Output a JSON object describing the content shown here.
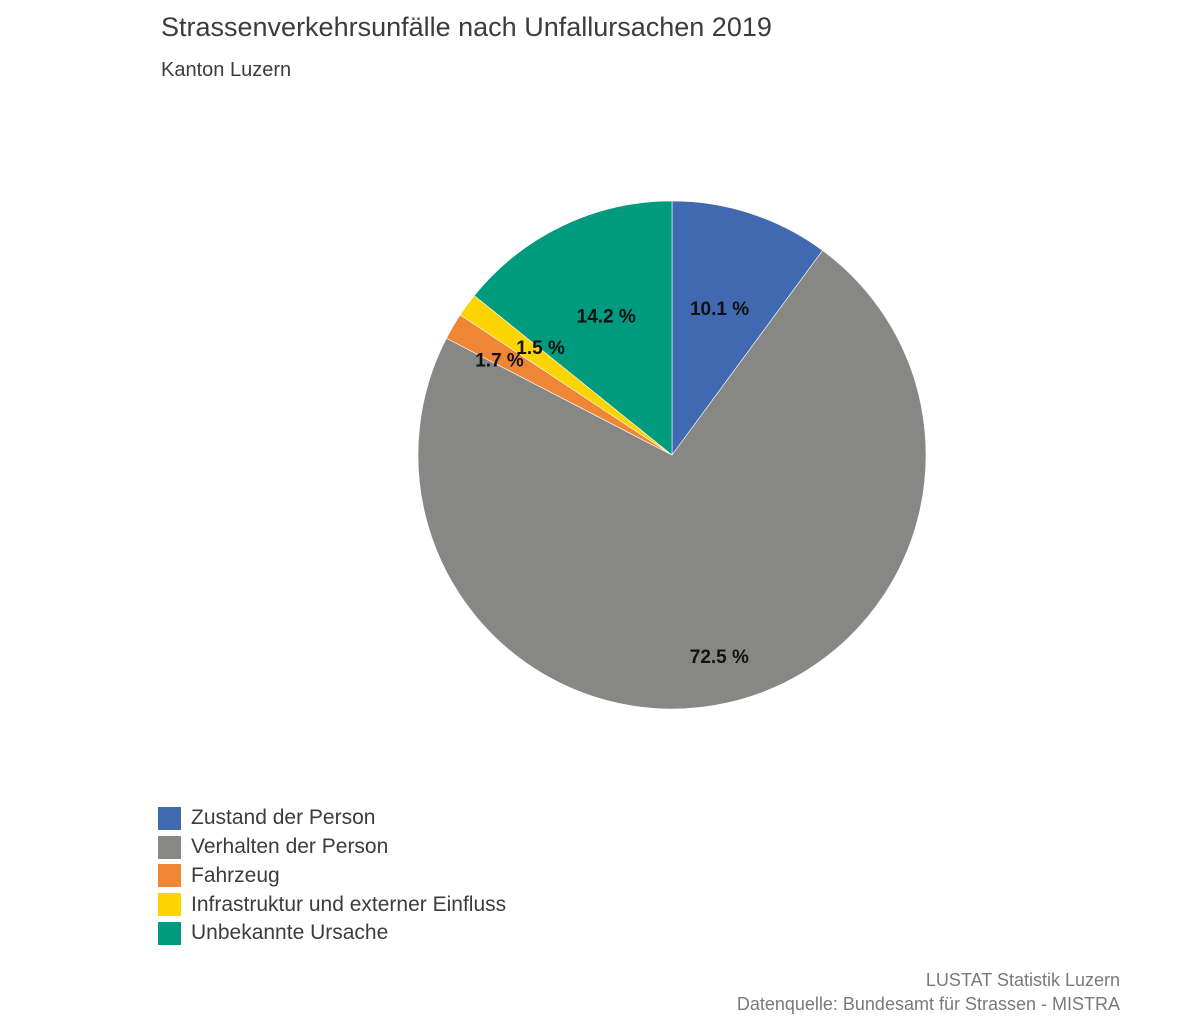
{
  "chart_data": {
    "type": "pie",
    "title": "Strassenverkehrsunfälle nach Unfallursachen 2019",
    "subtitle": "Kanton Luzern",
    "categories": [
      "Zustand der Person",
      "Verhalten der Person",
      "Fahrzeug",
      "Infrastruktur und externer Einfluss",
      "Unbekannte Ursache"
    ],
    "values": [
      10.1,
      72.5,
      1.7,
      1.5,
      14.2
    ],
    "labels": [
      "10.1 %",
      "72.5 %",
      "1.7 %",
      "1.5 %",
      "14.2 %"
    ],
    "colors": [
      "#4169b1",
      "#878786",
      "#ef8636",
      "#fcd400",
      "#009a7e"
    ],
    "direction": "clockwise from top",
    "legend_position": "bottom-left"
  },
  "source": {
    "line1": "LUSTAT Statistik Luzern",
    "line2": "Datenquelle: Bundesamt für Strassen - MISTRA"
  }
}
